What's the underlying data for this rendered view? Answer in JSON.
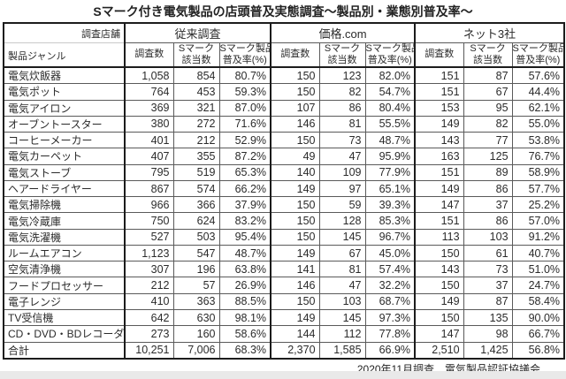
{
  "title": "Sマーク付き電気製品の店頭普及実態調査～製品別・業態別普及率～",
  "footer": "2020年11月調査　電気製品認証協議会",
  "colors": {
    "background": "#ffffff",
    "border_thick": "#1c1c1c",
    "border_thin": "#5a5a5a",
    "text": "#2b2b2b",
    "bottom_band": "#e9e9e9"
  },
  "table": {
    "corner": {
      "top_right": "調査店舗",
      "bottom_left": "製品ジャンル"
    },
    "groups": [
      "従来調査",
      "価格.com",
      "ネット3社"
    ],
    "sub_headers": [
      {
        "line1": "調査数",
        "line2": ""
      },
      {
        "line1": "Sマーク",
        "line2": "該当数"
      },
      {
        "line1": "Sマーク製品",
        "line2": "普及率(%)"
      }
    ],
    "rows": [
      {
        "label": "電気炊飯器",
        "values": [
          "1,058",
          "854",
          "80.7%",
          "150",
          "123",
          "82.0%",
          "151",
          "87",
          "57.6%"
        ]
      },
      {
        "label": "電気ポット",
        "values": [
          "764",
          "453",
          "59.3%",
          "150",
          "82",
          "54.7%",
          "151",
          "67",
          "44.4%"
        ]
      },
      {
        "label": "電気アイロン",
        "values": [
          "369",
          "321",
          "87.0%",
          "107",
          "86",
          "80.4%",
          "153",
          "95",
          "62.1%"
        ]
      },
      {
        "label": "オーブントースター",
        "values": [
          "380",
          "272",
          "71.6%",
          "146",
          "81",
          "55.5%",
          "149",
          "82",
          "55.0%"
        ]
      },
      {
        "label": "コーヒーメーカー",
        "values": [
          "401",
          "212",
          "52.9%",
          "150",
          "73",
          "48.7%",
          "143",
          "77",
          "53.8%"
        ]
      },
      {
        "label": "電気カーペット",
        "values": [
          "407",
          "355",
          "87.2%",
          "49",
          "47",
          "95.9%",
          "163",
          "125",
          "76.7%"
        ]
      },
      {
        "label": "電気ストーブ",
        "values": [
          "795",
          "519",
          "65.3%",
          "140",
          "109",
          "77.9%",
          "151",
          "89",
          "58.9%"
        ]
      },
      {
        "label": "ヘアードライヤー",
        "values": [
          "867",
          "574",
          "66.2%",
          "149",
          "97",
          "65.1%",
          "149",
          "86",
          "57.7%"
        ]
      },
      {
        "label": "電気掃除機",
        "values": [
          "966",
          "366",
          "37.9%",
          "150",
          "59",
          "39.3%",
          "147",
          "37",
          "25.2%"
        ]
      },
      {
        "label": "電気冷蔵庫",
        "values": [
          "750",
          "624",
          "83.2%",
          "150",
          "128",
          "85.3%",
          "151",
          "86",
          "57.0%"
        ]
      },
      {
        "label": "電気洗濯機",
        "values": [
          "527",
          "503",
          "95.4%",
          "150",
          "145",
          "96.7%",
          "113",
          "103",
          "91.2%"
        ]
      },
      {
        "label": "ルームエアコン",
        "values": [
          "1,123",
          "547",
          "48.7%",
          "149",
          "67",
          "45.0%",
          "150",
          "61",
          "40.7%"
        ]
      },
      {
        "label": "空気清浄機",
        "values": [
          "307",
          "196",
          "63.8%",
          "141",
          "81",
          "57.4%",
          "143",
          "73",
          "51.0%"
        ]
      },
      {
        "label": "フードプロセッサー",
        "values": [
          "212",
          "57",
          "26.9%",
          "146",
          "47",
          "32.2%",
          "150",
          "37",
          "24.7%"
        ]
      },
      {
        "label": "電子レンジ",
        "values": [
          "410",
          "363",
          "88.5%",
          "150",
          "103",
          "68.7%",
          "149",
          "87",
          "58.4%"
        ]
      },
      {
        "label": "TV受信機",
        "values": [
          "642",
          "630",
          "98.1%",
          "149",
          "145",
          "97.3%",
          "150",
          "135",
          "90.0%"
        ]
      },
      {
        "label": "CD・DVD・BDレコーダー",
        "values": [
          "273",
          "160",
          "58.6%",
          "144",
          "112",
          "77.8%",
          "147",
          "98",
          "66.7%"
        ]
      },
      {
        "label": "合計",
        "is_total": true,
        "values": [
          "10,251",
          "7,006",
          "68.3%",
          "2,370",
          "1,585",
          "66.9%",
          "2,510",
          "1,425",
          "56.8%"
        ]
      }
    ]
  }
}
